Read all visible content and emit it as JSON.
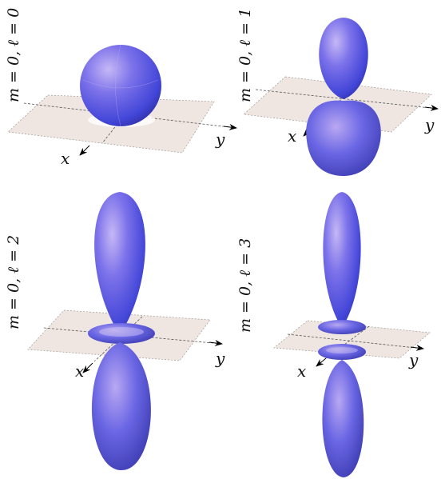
{
  "panels": [
    {
      "label": "m = 0, ℓ = 0",
      "x_axis": "x",
      "y_axis": "y"
    },
    {
      "label": "m = 0, ℓ = 1",
      "x_axis": "x",
      "y_axis": "y"
    },
    {
      "label": "m = 0, ℓ = 2",
      "x_axis": "x",
      "y_axis": "y"
    },
    {
      "label": "m = 0, ℓ = 3",
      "x_axis": "x",
      "y_axis": "y"
    }
  ],
  "colors": {
    "lobe_light": "#bba8f0",
    "lobe_mid": "#5c5ee6",
    "lobe_dark": "#2a2a9c",
    "plane_fill": "#efe6e2",
    "plane_stroke": "#999999"
  }
}
